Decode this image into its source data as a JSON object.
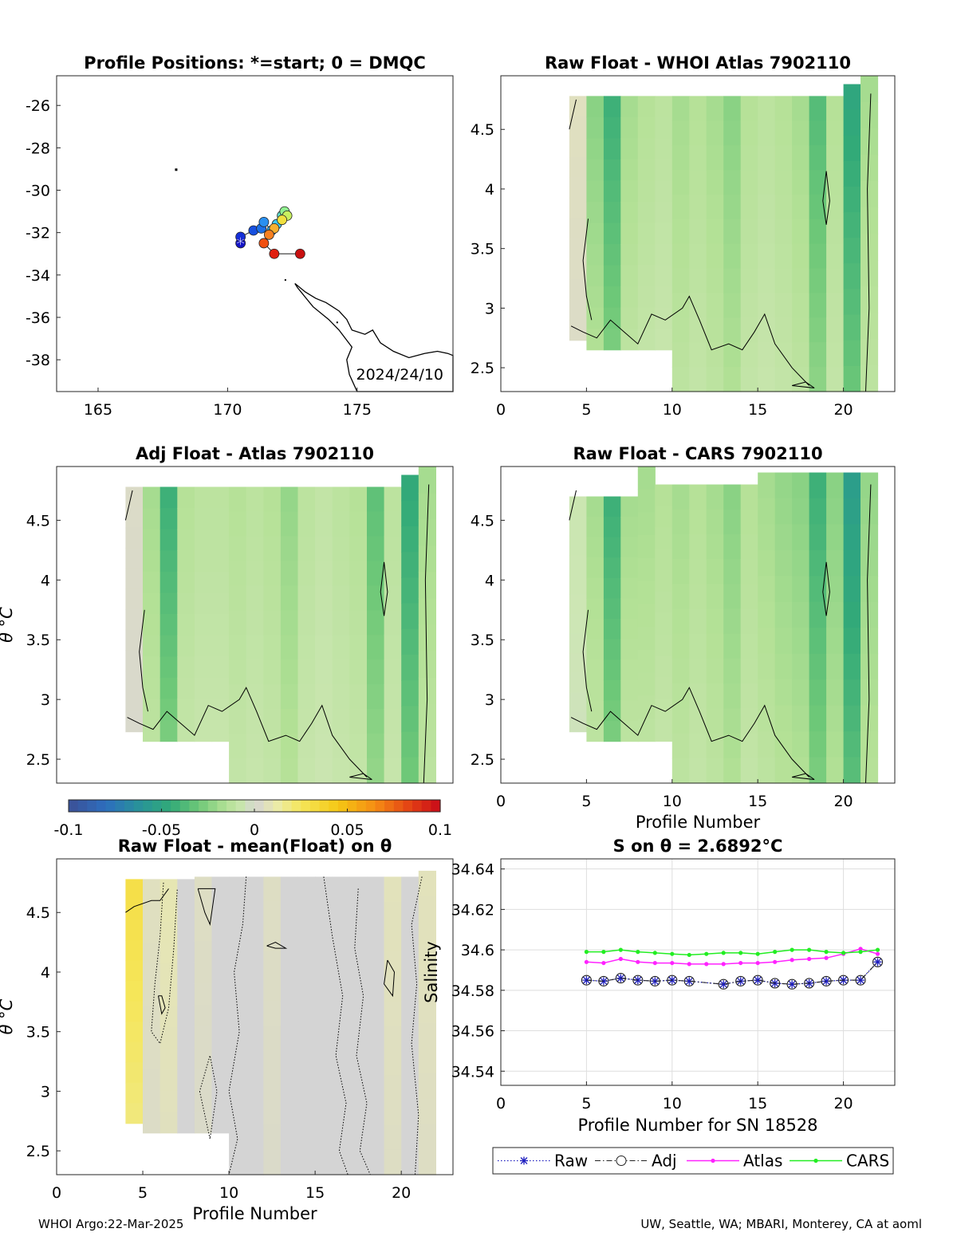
{
  "footer": {
    "left": "WHOI Argo:22-Mar-2025",
    "right": "UW, Seattle, WA; MBARI, Monterey, CA at aoml"
  },
  "colors": {
    "pos": "#c8c8c8",
    "neg": "#2e9b6b",
    "map_land": "#000000",
    "raw": "#1f1fbf",
    "adj": "#222222",
    "atlas": "#ff22ff",
    "cars": "#22ee22"
  },
  "chart_data": [
    {
      "id": "map",
      "type": "scatter",
      "title": "Profile Positions: *=start; 0 = DMQC",
      "xlim": [
        163.4,
        178.7
      ],
      "ylim": [
        -39.5,
        -24.6
      ],
      "xticks": [
        165,
        170,
        175
      ],
      "yticks": [
        -26,
        -28,
        -30,
        -32,
        -34,
        -36,
        -38
      ],
      "annotation": "2024/24/10",
      "start_marker": "*",
      "points": [
        {
          "lon": 170.5,
          "lat": -32.5,
          "color": "#1515c8"
        },
        {
          "lon": 170.5,
          "lat": -32.2,
          "color": "#1530d8"
        },
        {
          "lon": 171.0,
          "lat": -31.9,
          "color": "#1850e0"
        },
        {
          "lon": 171.3,
          "lat": -31.8,
          "color": "#1c70e8"
        },
        {
          "lon": 171.4,
          "lat": -31.5,
          "color": "#2a90f0"
        },
        {
          "lon": 171.7,
          "lat": -31.9,
          "color": "#30b0f8"
        },
        {
          "lon": 171.9,
          "lat": -31.6,
          "color": "#40c8f0"
        },
        {
          "lon": 172.1,
          "lat": -31.2,
          "color": "#60e0d0"
        },
        {
          "lon": 172.2,
          "lat": -31.0,
          "color": "#90f090"
        },
        {
          "lon": 172.3,
          "lat": -31.2,
          "color": "#c8f060"
        },
        {
          "lon": 172.1,
          "lat": -31.4,
          "color": "#f0e040"
        },
        {
          "lon": 171.8,
          "lat": -31.8,
          "color": "#f8b030"
        },
        {
          "lon": 171.6,
          "lat": -32.1,
          "color": "#f88020"
        },
        {
          "lon": 171.4,
          "lat": -32.5,
          "color": "#f05010"
        },
        {
          "lon": 171.8,
          "lat": -33.0,
          "color": "#e02010"
        },
        {
          "lon": 172.8,
          "lat": -33.0,
          "color": "#c81010"
        }
      ]
    },
    {
      "id": "rawatlas",
      "type": "heatmap",
      "title": "Raw Float - WHOI Atlas  7902110",
      "xlim": [
        0,
        23
      ],
      "ylim": [
        2.3,
        4.95
      ],
      "xticks": [
        0,
        5,
        10,
        15,
        20
      ],
      "yticks": [
        2.5,
        3,
        3.5,
        4,
        4.5
      ],
      "columns": [
        {
          "x": 4,
          "top": 4.78,
          "bottom": 2.73,
          "v": 0.005
        },
        {
          "x": 5,
          "top": 4.78,
          "bottom": 2.65,
          "v": -0.02
        },
        {
          "x": 6,
          "top": 4.78,
          "bottom": 2.65,
          "v": -0.035
        },
        {
          "x": 7,
          "top": 4.78,
          "bottom": 2.65,
          "v": -0.015
        },
        {
          "x": 8,
          "top": 4.78,
          "bottom": 2.65,
          "v": -0.012
        },
        {
          "x": 9,
          "top": 4.78,
          "bottom": 2.65,
          "v": -0.01
        },
        {
          "x": 10,
          "top": 4.78,
          "bottom": 2.3,
          "v": -0.015
        },
        {
          "x": 11,
          "top": 4.78,
          "bottom": 2.3,
          "v": -0.012
        },
        {
          "x": 12,
          "top": 4.78,
          "bottom": 2.3,
          "v": -0.015
        },
        {
          "x": 13,
          "top": 4.78,
          "bottom": 2.3,
          "v": -0.02
        },
        {
          "x": 14,
          "top": 4.78,
          "bottom": 2.3,
          "v": -0.012
        },
        {
          "x": 15,
          "top": 4.78,
          "bottom": 2.3,
          "v": -0.01
        },
        {
          "x": 16,
          "top": 4.78,
          "bottom": 2.3,
          "v": -0.012
        },
        {
          "x": 17,
          "top": 4.78,
          "bottom": 2.3,
          "v": -0.015
        },
        {
          "x": 18,
          "top": 4.78,
          "bottom": 2.3,
          "v": -0.03
        },
        {
          "x": 19,
          "top": 4.78,
          "bottom": 2.3,
          "v": -0.012
        },
        {
          "x": 20,
          "top": 4.88,
          "bottom": 2.3,
          "v": -0.04
        },
        {
          "x": 21,
          "top": 4.95,
          "bottom": 2.3,
          "v": -0.015
        }
      ]
    },
    {
      "id": "adjatlas",
      "type": "heatmap",
      "title": "Adj Float - Atlas  7902110",
      "ylabel": "θ °C",
      "xlim": [
        0,
        23
      ],
      "ylim": [
        2.3,
        4.95
      ],
      "yticks": [
        2.5,
        3,
        3.5,
        4,
        4.5
      ],
      "columns": [
        {
          "x": 4,
          "top": 4.78,
          "bottom": 2.73,
          "v": 0.003
        },
        {
          "x": 5,
          "top": 4.78,
          "bottom": 2.65,
          "v": -0.015
        },
        {
          "x": 6,
          "top": 4.78,
          "bottom": 2.65,
          "v": -0.035
        },
        {
          "x": 7,
          "top": 4.78,
          "bottom": 2.65,
          "v": -0.012
        },
        {
          "x": 8,
          "top": 4.78,
          "bottom": 2.65,
          "v": -0.01
        },
        {
          "x": 9,
          "top": 4.78,
          "bottom": 2.65,
          "v": -0.01
        },
        {
          "x": 10,
          "top": 4.78,
          "bottom": 2.3,
          "v": -0.012
        },
        {
          "x": 11,
          "top": 4.78,
          "bottom": 2.3,
          "v": -0.01
        },
        {
          "x": 12,
          "top": 4.78,
          "bottom": 2.3,
          "v": -0.012
        },
        {
          "x": 13,
          "top": 4.78,
          "bottom": 2.3,
          "v": -0.018
        },
        {
          "x": 14,
          "top": 4.78,
          "bottom": 2.3,
          "v": -0.01
        },
        {
          "x": 15,
          "top": 4.78,
          "bottom": 2.3,
          "v": -0.008
        },
        {
          "x": 16,
          "top": 4.78,
          "bottom": 2.3,
          "v": -0.01
        },
        {
          "x": 17,
          "top": 4.78,
          "bottom": 2.3,
          "v": -0.012
        },
        {
          "x": 18,
          "top": 4.78,
          "bottom": 2.3,
          "v": -0.028
        },
        {
          "x": 19,
          "top": 4.78,
          "bottom": 2.3,
          "v": -0.01
        },
        {
          "x": 20,
          "top": 4.88,
          "bottom": 2.3,
          "v": -0.038
        },
        {
          "x": 21,
          "top": 4.95,
          "bottom": 2.3,
          "v": -0.015
        }
      ]
    },
    {
      "id": "rawcars",
      "type": "heatmap",
      "title": "Raw Float - CARS  7902110",
      "xlabel": "Profile Number",
      "xlim": [
        0,
        23
      ],
      "ylim": [
        2.3,
        4.95
      ],
      "xticks": [
        0,
        5,
        10,
        15,
        20
      ],
      "yticks": [
        2.5,
        3,
        3.5,
        4,
        4.5
      ],
      "columns": [
        {
          "x": 4,
          "top": 4.7,
          "bottom": 2.73,
          "v": -0.005
        },
        {
          "x": 5,
          "top": 4.7,
          "bottom": 2.65,
          "v": -0.015
        },
        {
          "x": 6,
          "top": 4.7,
          "bottom": 2.65,
          "v": -0.035
        },
        {
          "x": 7,
          "top": 4.7,
          "bottom": 2.65,
          "v": -0.015
        },
        {
          "x": 8,
          "top": 4.95,
          "bottom": 2.65,
          "v": -0.015
        },
        {
          "x": 9,
          "top": 4.8,
          "bottom": 2.65,
          "v": -0.012
        },
        {
          "x": 10,
          "top": 4.8,
          "bottom": 2.3,
          "v": -0.015
        },
        {
          "x": 11,
          "top": 4.8,
          "bottom": 2.3,
          "v": -0.012
        },
        {
          "x": 12,
          "top": 4.8,
          "bottom": 2.3,
          "v": -0.015
        },
        {
          "x": 13,
          "top": 4.8,
          "bottom": 2.3,
          "v": -0.02
        },
        {
          "x": 14,
          "top": 4.8,
          "bottom": 2.3,
          "v": -0.012
        },
        {
          "x": 15,
          "top": 4.9,
          "bottom": 2.3,
          "v": -0.015
        },
        {
          "x": 16,
          "top": 4.9,
          "bottom": 2.3,
          "v": -0.018
        },
        {
          "x": 17,
          "top": 4.9,
          "bottom": 2.3,
          "v": -0.02
        },
        {
          "x": 18,
          "top": 4.9,
          "bottom": 2.3,
          "v": -0.035
        },
        {
          "x": 19,
          "top": 4.9,
          "bottom": 2.3,
          "v": -0.02
        },
        {
          "x": 20,
          "top": 4.9,
          "bottom": 2.3,
          "v": -0.045
        },
        {
          "x": 21,
          "top": 4.9,
          "bottom": 2.3,
          "v": -0.018
        }
      ]
    },
    {
      "id": "colorbar",
      "type": "heatmap",
      "clim": [
        -0.1,
        0.1
      ],
      "ticks": [
        "-0.1",
        "-0.05",
        "0",
        "0.05",
        "0.1"
      ]
    },
    {
      "id": "rawmean",
      "type": "heatmap",
      "title": "Raw Float - mean(Float) on θ",
      "xlabel": "Profile Number",
      "ylabel": "θ °C",
      "xlim": [
        0,
        23
      ],
      "ylim": [
        2.3,
        4.95
      ],
      "xticks": [
        0,
        5,
        10,
        15,
        20
      ],
      "yticks": [
        2.5,
        3,
        3.5,
        4,
        4.5
      ],
      "columns": [
        {
          "x": 4,
          "top": 4.78,
          "bottom": 2.73,
          "v": 0.025
        },
        {
          "x": 5,
          "top": 4.78,
          "bottom": 2.65,
          "v": 0.005
        },
        {
          "x": 6,
          "top": 4.78,
          "bottom": 2.65,
          "v": 0.008
        },
        {
          "x": 7,
          "top": 4.78,
          "bottom": 2.65,
          "v": 0.0
        },
        {
          "x": 8,
          "top": 4.8,
          "bottom": 2.65,
          "v": 0.004
        },
        {
          "x": 9,
          "top": 4.8,
          "bottom": 2.65,
          "v": 0.0
        },
        {
          "x": 10,
          "top": 4.8,
          "bottom": 2.3,
          "v": 0.0
        },
        {
          "x": 11,
          "top": 4.8,
          "bottom": 2.3,
          "v": 0.0
        },
        {
          "x": 12,
          "top": 4.8,
          "bottom": 2.3,
          "v": 0.004
        },
        {
          "x": 13,
          "top": 4.8,
          "bottom": 2.3,
          "v": 0.0
        },
        {
          "x": 14,
          "top": 4.8,
          "bottom": 2.3,
          "v": 0.0
        },
        {
          "x": 15,
          "top": 4.8,
          "bottom": 2.3,
          "v": 0.0
        },
        {
          "x": 16,
          "top": 4.8,
          "bottom": 2.3,
          "v": 0.0
        },
        {
          "x": 17,
          "top": 4.8,
          "bottom": 2.3,
          "v": 0.0
        },
        {
          "x": 18,
          "top": 4.8,
          "bottom": 2.3,
          "v": 0.0
        },
        {
          "x": 19,
          "top": 4.8,
          "bottom": 2.3,
          "v": 0.006
        },
        {
          "x": 20,
          "top": 4.8,
          "bottom": 2.3,
          "v": 0.0
        },
        {
          "x": 21,
          "top": 4.85,
          "bottom": 2.3,
          "v": 0.006
        }
      ]
    },
    {
      "id": "salinity",
      "type": "line",
      "title": "S on θ = 2.6892°C",
      "xlabel": "Profile Number for SN 18528",
      "ylabel": "Salinity",
      "xlim": [
        0,
        23
      ],
      "ylim": [
        34.533,
        34.645
      ],
      "xticks": [
        0,
        5,
        10,
        15,
        20
      ],
      "yticks": [
        34.54,
        34.56,
        34.58,
        34.6,
        34.62,
        34.64
      ],
      "grid": true,
      "legend": [
        "Raw",
        "Adj",
        "Atlas",
        "CARS"
      ],
      "legend_position": "bottom",
      "series": [
        {
          "name": "Raw",
          "x": [
            5,
            6,
            7,
            8,
            9,
            10,
            11,
            13,
            14,
            15,
            16,
            17,
            18,
            19,
            20,
            21,
            22
          ],
          "y": [
            34.585,
            34.5845,
            34.586,
            34.585,
            34.5845,
            34.585,
            34.5845,
            34.583,
            34.5845,
            34.585,
            34.5835,
            34.583,
            34.5835,
            34.5845,
            34.585,
            34.585,
            34.594
          ]
        },
        {
          "name": "Adj",
          "x": [
            5,
            6,
            7,
            8,
            9,
            10,
            11,
            13,
            14,
            15,
            16,
            17,
            18,
            19,
            20,
            21,
            22
          ],
          "y": [
            34.585,
            34.5845,
            34.586,
            34.585,
            34.5845,
            34.585,
            34.5845,
            34.583,
            34.5845,
            34.585,
            34.5835,
            34.583,
            34.5835,
            34.5845,
            34.585,
            34.585,
            34.594
          ]
        },
        {
          "name": "Atlas",
          "x": [
            5,
            6,
            7,
            8,
            9,
            10,
            11,
            12,
            13,
            14,
            15,
            16,
            17,
            18,
            19,
            20,
            21,
            22
          ],
          "y": [
            34.594,
            34.5935,
            34.5955,
            34.594,
            34.5935,
            34.5935,
            34.593,
            34.593,
            34.593,
            34.5935,
            34.5935,
            34.594,
            34.595,
            34.5955,
            34.596,
            34.598,
            34.6005,
            34.598
          ]
        },
        {
          "name": "CARS",
          "x": [
            5,
            6,
            7,
            8,
            9,
            10,
            11,
            12,
            13,
            14,
            15,
            16,
            17,
            18,
            19,
            20,
            21,
            22
          ],
          "y": [
            34.599,
            34.599,
            34.6,
            34.599,
            34.5985,
            34.598,
            34.5975,
            34.598,
            34.5985,
            34.5985,
            34.598,
            34.599,
            34.6,
            34.6,
            34.599,
            34.5985,
            34.599,
            34.6
          ]
        }
      ]
    }
  ]
}
